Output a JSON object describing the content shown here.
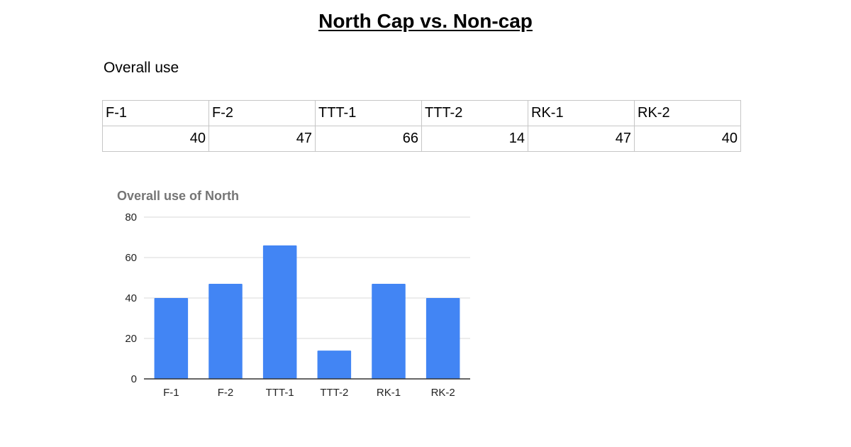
{
  "document": {
    "title": "North Cap vs. Non-cap",
    "section_heading": "Overall use"
  },
  "table": {
    "headers": [
      "F-1",
      "F-2",
      "TTT-1",
      "TTT-2",
      "RK-1",
      "RK-2"
    ],
    "values": [
      "40",
      "47",
      "66",
      "14",
      "47",
      "40"
    ]
  },
  "chart_data": {
    "type": "bar",
    "title": "Overall use of North",
    "xlabel": "",
    "ylabel": "",
    "categories": [
      "F-1",
      "F-2",
      "TTT-1",
      "TTT-2",
      "RK-1",
      "RK-2"
    ],
    "values": [
      40,
      47,
      66,
      14,
      47,
      40
    ],
    "ylim": [
      0,
      80
    ],
    "yticks": [
      0,
      20,
      40,
      60,
      80
    ],
    "grid": true,
    "legend": "none",
    "colors": {
      "bar": "#4285f4",
      "grid": "#d9d9d9",
      "axis": "#333333",
      "title": "#757575",
      "tick_label": "#222222"
    }
  }
}
